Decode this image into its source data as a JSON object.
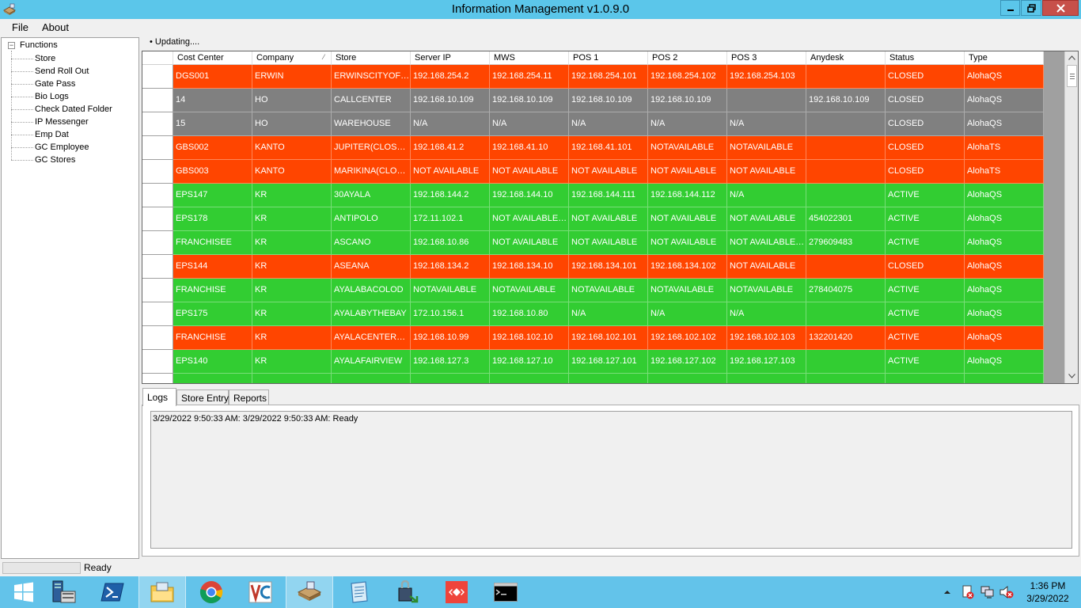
{
  "window": {
    "title": "Information Management v1.0.9.0",
    "buttons": {
      "minimize": "▁",
      "maximize": "❐",
      "close": "✕"
    }
  },
  "menu": {
    "file": "File",
    "about": "About"
  },
  "tree": {
    "root": "Functions",
    "expander": "−",
    "items": [
      "Store",
      "Send Roll Out",
      "Gate Pass",
      "Bio Logs",
      "Check Dated Folder",
      "IP Messenger",
      "Emp Dat",
      "GC Employee",
      "GC Stores"
    ]
  },
  "updating": "• Updating....",
  "grid": {
    "columns": [
      "Cost Center",
      "Company",
      "Store",
      "Server IP",
      "MWS",
      "POS 1",
      "POS 2",
      "POS 3",
      "Anydesk",
      "Status",
      "Type"
    ],
    "sort_indicator": "⁄",
    "colors": {
      "closed": "#ff4500",
      "active": "#32cd32",
      "gray": "#808080"
    },
    "rows": [
      {
        "color": "closed",
        "cells": [
          "DGS001",
          "ERWIN",
          "ERWINSCITYOF…",
          "192.168.254.2",
          "192.168.254.11",
          "192.168.254.101",
          "192.168.254.102",
          "192.168.254.103",
          "",
          "CLOSED",
          "AlohaQS"
        ]
      },
      {
        "color": "gray",
        "cells": [
          "14",
          "HO",
          "CALLCENTER",
          "192.168.10.109",
          "192.168.10.109",
          "192.168.10.109",
          "192.168.10.109",
          "",
          "192.168.10.109",
          "CLOSED",
          "AlohaQS"
        ]
      },
      {
        "color": "gray",
        "cells": [
          "15",
          "HO",
          "WAREHOUSE",
          "N/A",
          "N/A",
          "N/A",
          "N/A",
          "N/A",
          "",
          "CLOSED",
          "AlohaQS"
        ]
      },
      {
        "color": "closed",
        "cells": [
          "GBS002",
          "KANTO",
          "JUPITER(CLOSED)",
          "192.168.41.2",
          "192.168.41.10",
          "192.168.41.101",
          "NOTAVAILABLE",
          "NOTAVAILABLE",
          "",
          "CLOSED",
          "AlohaTS"
        ]
      },
      {
        "color": "closed",
        "cells": [
          "GBS003",
          "KANTO",
          "MARIKINA(CLOS…",
          "NOT AVAILABLE",
          "NOT AVAILABLE",
          "NOT AVAILABLE",
          "NOT AVAILABLE",
          "NOT AVAILABLE",
          "",
          "CLOSED",
          "AlohaTS"
        ]
      },
      {
        "color": "active",
        "cells": [
          "EPS147",
          "KR",
          "30AYALA",
          "192.168.144.2",
          "192.168.144.10",
          "192.168.144.111",
          "192.168.144.112",
          "N/A",
          "",
          "ACTIVE",
          "AlohaQS"
        ]
      },
      {
        "color": "active",
        "cells": [
          "EPS178",
          "KR",
          "ANTIPOLO",
          "172.11.102.1",
          "NOT AVAILABLE…",
          "NOT AVAILABLE",
          "NOT AVAILABLE",
          "NOT AVAILABLE",
          "454022301",
          "ACTIVE",
          "AlohaQS"
        ]
      },
      {
        "color": "active",
        "cells": [
          "FRANCHISEE",
          "KR",
          "ASCANO",
          "192.168.10.86",
          "NOT AVAILABLE",
          "NOT AVAILABLE",
          "NOT AVAILABLE",
          "NOT AVAILABLE…",
          "279609483",
          "ACTIVE",
          "AlohaQS"
        ]
      },
      {
        "color": "closed",
        "cells": [
          "EPS144",
          "KR",
          "ASEANA",
          "192.168.134.2",
          "192.168.134.10",
          "192.168.134.101",
          "192.168.134.102",
          "NOT AVAILABLE",
          "",
          "CLOSED",
          "AlohaQS"
        ]
      },
      {
        "color": "active",
        "cells": [
          "FRANCHISE",
          "KR",
          "AYALABACOLOD",
          "NOTAVAILABLE",
          "NOTAVAILABLE",
          "NOTAVAILABLE",
          "NOTAVAILABLE",
          "NOTAVAILABLE",
          "278404075",
          "ACTIVE",
          "AlohaQS"
        ]
      },
      {
        "color": "active",
        "cells": [
          "EPS175",
          "KR",
          "AYALABYTHEBAY",
          "172.10.156.1",
          "192.168.10.80",
          "N/A",
          "N/A",
          "N/A",
          "",
          "ACTIVE",
          "AlohaQS"
        ]
      },
      {
        "color": "closed",
        "cells": [
          "FRANCHISE",
          "KR",
          "AYALACENTERC…",
          "192.168.10.99",
          "192.168.102.10",
          "192.168.102.101",
          "192.168.102.102",
          "192.168.102.103",
          "132201420",
          "ACTIVE",
          "AlohaQS"
        ]
      },
      {
        "color": "active",
        "cells": [
          "EPS140",
          "KR",
          "AYALAFAIRVIEW",
          "192.168.127.3",
          "192.168.127.10",
          "192.168.127.101",
          "192.168.127.102",
          "192.168.127.103",
          "",
          "ACTIVE",
          "AlohaQS"
        ]
      },
      {
        "color": "active",
        "cells": [
          "",
          "",
          "",
          "",
          "",
          "",
          "",
          "",
          "",
          "",
          ""
        ]
      }
    ]
  },
  "tabs": [
    "Logs",
    "Store Entry",
    "Reports"
  ],
  "log_text": "3/29/2022 9:50:33 AM: 3/29/2022 9:50:33 AM: Ready",
  "status": "Ready",
  "taskbar": {
    "apps": [
      "start-icon",
      "server-manager-icon",
      "powershell-icon",
      "file-explorer-icon",
      "chrome-icon",
      "vnc-icon",
      "information-management-icon",
      "notepad-icon",
      "network-tool-icon",
      "anydesk-icon",
      "command-prompt-icon"
    ],
    "time": "1:36 PM",
    "date": "3/29/2022"
  }
}
